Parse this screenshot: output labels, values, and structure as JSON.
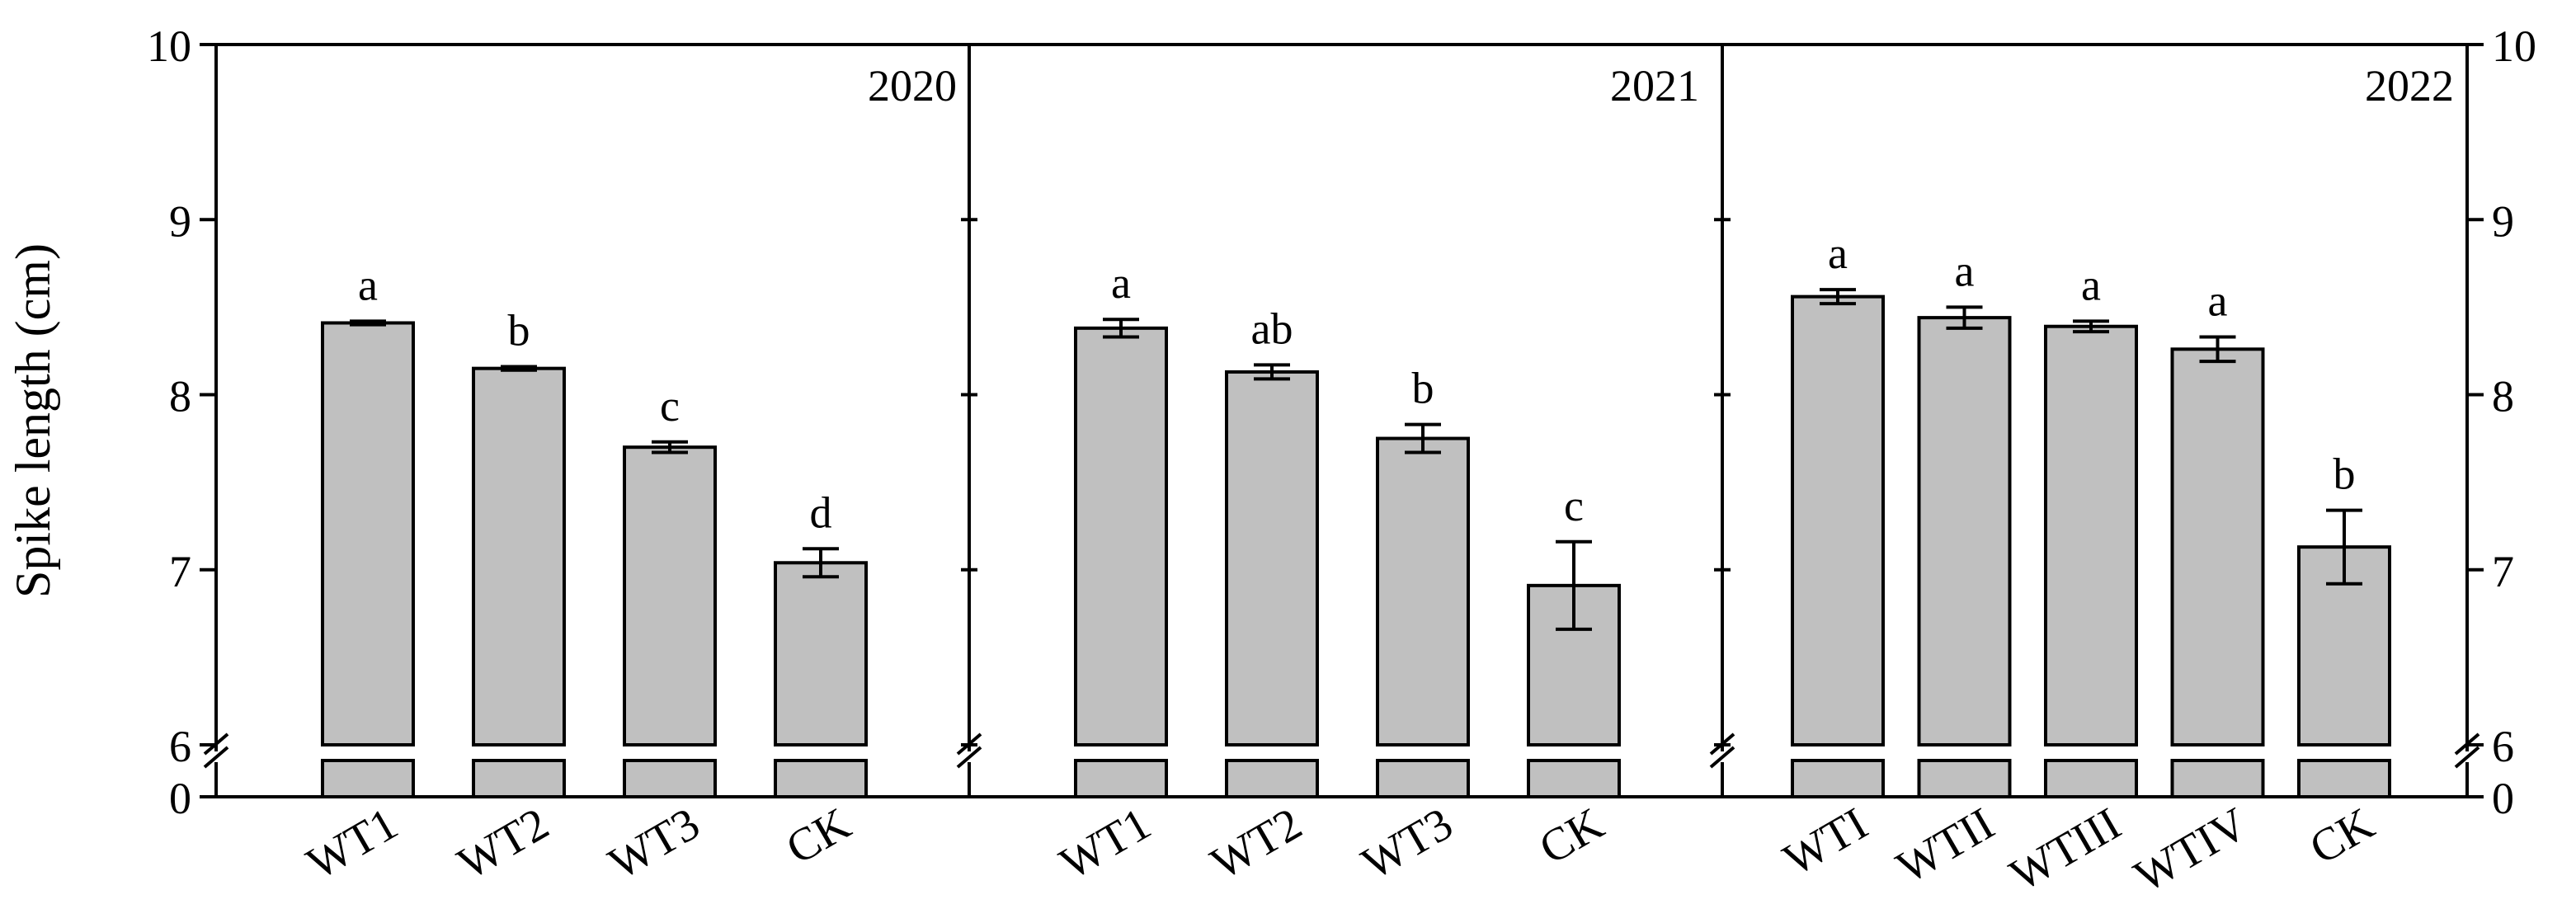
{
  "chart_data": {
    "type": "bar",
    "ylabel": "Spike length (cm)",
    "y_axis": {
      "break_lower": 0,
      "break_upper": 6,
      "upper_range": [
        6,
        10
      ],
      "ticks": [
        6,
        7,
        8,
        9,
        10
      ],
      "tick_labels": [
        "6",
        "7",
        "8",
        "9",
        "10"
      ],
      "bottom_tick_label": "0"
    },
    "panels": [
      {
        "title": "2020",
        "categories": [
          "WT1",
          "WT2",
          "WT3",
          "CK"
        ],
        "values": [
          8.41,
          8.15,
          7.7,
          7.04
        ],
        "errors": [
          0.01,
          0.01,
          0.03,
          0.08
        ],
        "significance": [
          "a",
          "b",
          "c",
          "d"
        ]
      },
      {
        "title": "2021",
        "categories": [
          "WT1",
          "WT2",
          "WT3",
          "CK"
        ],
        "values": [
          8.38,
          8.13,
          7.75,
          6.91
        ],
        "errors": [
          0.05,
          0.04,
          0.08,
          0.25
        ],
        "significance": [
          "a",
          "ab",
          "b",
          "c"
        ]
      },
      {
        "title": "2022",
        "categories": [
          "WTI",
          "WTII",
          "WTIII",
          "WTIV",
          "CK"
        ],
        "values": [
          8.56,
          8.44,
          8.39,
          8.26,
          7.13
        ],
        "errors": [
          0.04,
          0.06,
          0.03,
          0.07,
          0.21
        ],
        "significance": [
          "a",
          "a",
          "a",
          "a",
          "b"
        ]
      }
    ]
  }
}
